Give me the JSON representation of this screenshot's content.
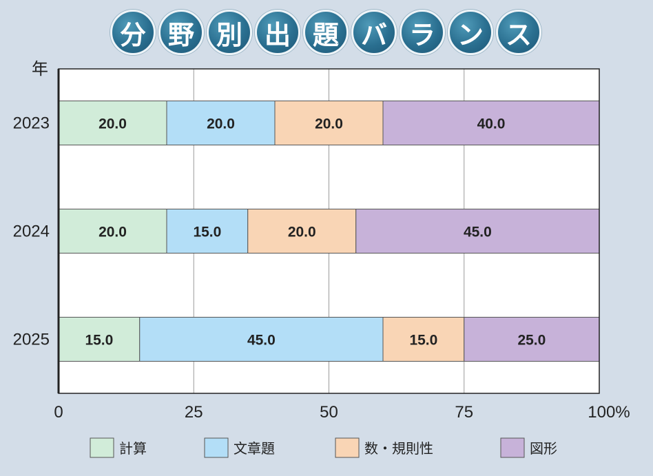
{
  "title_chars": [
    "分",
    "野",
    "別",
    "出",
    "題",
    "バ",
    "ラ",
    "ン",
    "ス"
  ],
  "chart_data": {
    "type": "bar",
    "orientation": "horizontal",
    "stacked": "percent",
    "title": "分野別出題バランス",
    "ylabel": "年",
    "categories": [
      "2023",
      "2024",
      "2025"
    ],
    "xlim": [
      0,
      100
    ],
    "xticks": [
      "0",
      "25",
      "50",
      "75",
      "100%"
    ],
    "grid": true,
    "legend_position": "bottom",
    "series": [
      {
        "name": "計算",
        "color": "#d1ecd9",
        "values": [
          20.0,
          20.0,
          15.0
        ]
      },
      {
        "name": "文章題",
        "color": "#b3def7",
        "values": [
          20.0,
          15.0,
          45.0
        ]
      },
      {
        "name": "数・規則性",
        "color": "#f9d5b5",
        "values": [
          20.0,
          20.0,
          15.0
        ]
      },
      {
        "name": "図形",
        "color": "#c7b2d9",
        "values": [
          40.0,
          45.0,
          25.0
        ]
      }
    ],
    "value_labels": [
      [
        "20.0",
        "20.0",
        "20.0",
        "40.0"
      ],
      [
        "20.0",
        "15.0",
        "20.0",
        "45.0"
      ],
      [
        "15.0",
        "45.0",
        "15.0",
        "25.0"
      ]
    ]
  }
}
